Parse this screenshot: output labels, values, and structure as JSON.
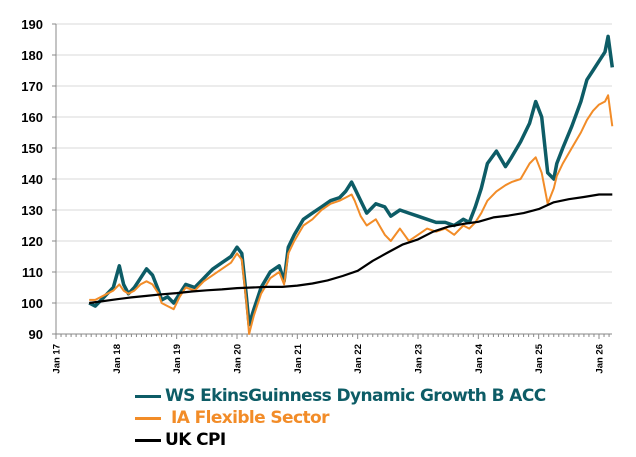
{
  "chart_data": {
    "type": "line",
    "title": "",
    "xlabel": "",
    "ylabel": "",
    "ylim": [
      90,
      190
    ],
    "yticks": [
      "90",
      "100",
      "110",
      "120",
      "130",
      "140",
      "150",
      "160",
      "170",
      "180",
      "190"
    ],
    "xlim": [
      2017.0,
      2026.25
    ],
    "xticks": [
      {
        "label": "Jan 17",
        "x": 2017.0
      },
      {
        "label": "Jan 18",
        "x": 2018.0
      },
      {
        "label": "Jan 19",
        "x": 2019.0
      },
      {
        "label": "Jan 20",
        "x": 2020.0
      },
      {
        "label": "Jan 21",
        "x": 2021.0
      },
      {
        "label": "Jan 22",
        "x": 2022.0
      },
      {
        "label": "Jan 23",
        "x": 2023.0
      },
      {
        "label": "Jan 24",
        "x": 2024.0
      },
      {
        "label": "Jan 25",
        "x": 2025.0
      },
      {
        "label": "Jan 26",
        "x": 2026.0
      }
    ],
    "grid": true,
    "legend_position": "bottom",
    "series": [
      {
        "name": "WS EkinsGuinness Dynamic Growth B ACC",
        "color": "#0d5c66",
        "x": [
          2017.55,
          2017.65,
          2017.75,
          2017.85,
          2017.95,
          2018.05,
          2018.12,
          2018.2,
          2018.3,
          2018.4,
          2018.5,
          2018.6,
          2018.7,
          2018.75,
          2018.85,
          2018.95,
          2019.05,
          2019.15,
          2019.3,
          2019.45,
          2019.6,
          2019.75,
          2019.9,
          2020.0,
          2020.08,
          2020.15,
          2020.2,
          2020.28,
          2020.4,
          2020.55,
          2020.7,
          2020.78,
          2020.85,
          2020.95,
          2021.1,
          2021.25,
          2021.4,
          2021.55,
          2021.7,
          2021.8,
          2021.9,
          2021.95,
          2022.05,
          2022.15,
          2022.3,
          2022.45,
          2022.55,
          2022.7,
          2022.85,
          2023.0,
          2023.15,
          2023.3,
          2023.45,
          2023.6,
          2023.75,
          2023.85,
          2023.95,
          2024.05,
          2024.15,
          2024.3,
          2024.45,
          2024.55,
          2024.7,
          2024.85,
          2024.95,
          2025.05,
          2025.15,
          2025.25,
          2025.3,
          2025.4,
          2025.55,
          2025.7,
          2025.8,
          2025.9,
          2026.0,
          2026.1,
          2026.15,
          2026.22
        ],
        "values": [
          100,
          99,
          101,
          103,
          105,
          112,
          106,
          103,
          105,
          108,
          111,
          109,
          104,
          101,
          102,
          100,
          103,
          106,
          105,
          108,
          111,
          113,
          115,
          118,
          116,
          103,
          93,
          98,
          105,
          110,
          112,
          107,
          118,
          122,
          127,
          129,
          131,
          133,
          134,
          136,
          139,
          137,
          133,
          129,
          132,
          131,
          128,
          130,
          129,
          128,
          127,
          126,
          126,
          125,
          127,
          126,
          131,
          137,
          145,
          149,
          144,
          147,
          152,
          158,
          165,
          160,
          142,
          140,
          145,
          150,
          157,
          165,
          172,
          175,
          178,
          181,
          186,
          176
        ]
      },
      {
        "name": "IA Flexible Sector",
        "color": "#f28c28",
        "x": [
          2017.55,
          2017.65,
          2017.75,
          2017.85,
          2017.95,
          2018.05,
          2018.12,
          2018.2,
          2018.3,
          2018.4,
          2018.5,
          2018.6,
          2018.7,
          2018.75,
          2018.85,
          2018.95,
          2019.05,
          2019.15,
          2019.3,
          2019.45,
          2019.6,
          2019.75,
          2019.9,
          2020.0,
          2020.08,
          2020.15,
          2020.2,
          2020.28,
          2020.4,
          2020.55,
          2020.7,
          2020.78,
          2020.85,
          2020.95,
          2021.1,
          2021.25,
          2021.4,
          2021.55,
          2021.7,
          2021.8,
          2021.9,
          2021.95,
          2022.05,
          2022.15,
          2022.3,
          2022.45,
          2022.55,
          2022.7,
          2022.85,
          2023.0,
          2023.15,
          2023.3,
          2023.45,
          2023.6,
          2023.75,
          2023.85,
          2023.95,
          2024.05,
          2024.15,
          2024.3,
          2024.45,
          2024.55,
          2024.7,
          2024.85,
          2024.95,
          2025.05,
          2025.15,
          2025.25,
          2025.3,
          2025.4,
          2025.55,
          2025.7,
          2025.8,
          2025.9,
          2026.0,
          2026.1,
          2026.15,
          2026.22
        ],
        "values": [
          101,
          101,
          102,
          103,
          104,
          106,
          104,
          103,
          104,
          106,
          107,
          106,
          103,
          100,
          99,
          98,
          102,
          105,
          104,
          107,
          109,
          111,
          113,
          116,
          114,
          101,
          90,
          96,
          103,
          108,
          110,
          106,
          116,
          120,
          125,
          127,
          130,
          132,
          133,
          134,
          135,
          133,
          128,
          125,
          127,
          122,
          120,
          124,
          120,
          122,
          124,
          123,
          124,
          122,
          125,
          124,
          126,
          129,
          133,
          136,
          138,
          139,
          140,
          145,
          147,
          142,
          132,
          137,
          141,
          145,
          150,
          155,
          159,
          162,
          164,
          165,
          167,
          157
        ]
      },
      {
        "name": "UK CPI",
        "color": "#000000",
        "x": [
          2017.55,
          2017.75,
          2018.0,
          2018.25,
          2018.5,
          2018.75,
          2019.0,
          2019.25,
          2019.5,
          2019.75,
          2020.0,
          2020.25,
          2020.5,
          2020.75,
          2021.0,
          2021.25,
          2021.5,
          2021.75,
          2022.0,
          2022.25,
          2022.5,
          2022.75,
          2023.0,
          2023.25,
          2023.5,
          2023.75,
          2024.0,
          2024.25,
          2024.5,
          2024.75,
          2025.0,
          2025.25,
          2025.5,
          2025.75,
          2026.0,
          2026.22
        ],
        "values": [
          100,
          100.5,
          101.2,
          101.8,
          102.3,
          102.8,
          103.2,
          103.7,
          104.1,
          104.4,
          104.8,
          105.0,
          105.2,
          105.2,
          105.6,
          106.3,
          107.3,
          108.7,
          110.4,
          113.6,
          116.3,
          118.9,
          120.5,
          123.0,
          124.6,
          125.5,
          126.2,
          127.6,
          128.2,
          129.0,
          130.3,
          132.5,
          133.5,
          134.2,
          135.0,
          135.0
        ]
      }
    ]
  }
}
